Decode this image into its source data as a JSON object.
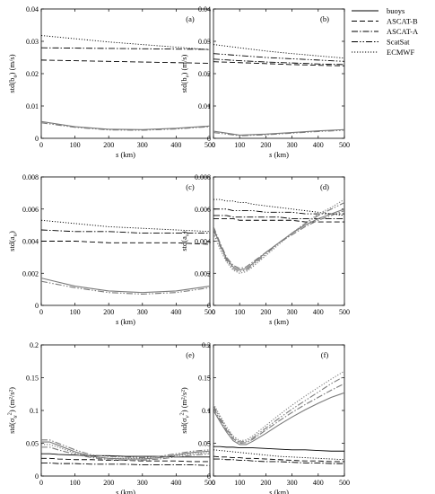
{
  "legend": {
    "items": [
      {
        "name": "buoys",
        "dash": "solid",
        "color": "#000000"
      },
      {
        "name": "ASCAT-B",
        "dash": "dashed",
        "color": "#000000"
      },
      {
        "name": "ASCAT-A",
        "dash": "dashdot",
        "color": "#000000"
      },
      {
        "name": "ScatSat",
        "dash": "dashdotdot",
        "color": "#000000"
      },
      {
        "name": "ECMWF",
        "dash": "dotted",
        "color": "#000000"
      }
    ]
  },
  "chart_data": [
    {
      "type": "line",
      "panel": "(a)",
      "ylabel_main": "std(b",
      "ylabel_sub": "u",
      "ylabel_rest": ")  (m/s)",
      "xlabel_main": "s",
      "xlabel_rest": "(km)",
      "xlim": [
        0,
        500
      ],
      "ylim": [
        0,
        0.04
      ],
      "xticks": [
        0,
        100,
        200,
        300,
        400,
        500
      ],
      "xtick_labels": [
        "0",
        "100",
        "200",
        "300",
        "400",
        "500"
      ],
      "yticks": [
        0,
        0.01,
        0.02,
        0.03,
        0.04
      ],
      "ytick_labels": [
        "0",
        "0.01",
        "0.02",
        "0.03",
        "0.04"
      ],
      "x": [
        0,
        100,
        200,
        300,
        400,
        500
      ],
      "series": [
        {
          "legend": "ASCAT-B",
          "values": [
            0.0242,
            0.024,
            0.0238,
            0.0236,
            0.0234,
            0.0232
          ]
        },
        {
          "legend": "ASCAT-A",
          "values": [
            0.028,
            0.0279,
            0.0278,
            0.0277,
            0.0276,
            0.0275
          ]
        },
        {
          "legend": "ECMWF",
          "values": [
            0.0318,
            0.0308,
            0.0298,
            0.029,
            0.0282,
            0.0274
          ]
        },
        {
          "legend": "buoys",
          "values": [
            0.0052,
            0.0036,
            0.0028,
            0.0027,
            0.0031,
            0.0038
          ]
        },
        {
          "legend": "ScatSat",
          "values": [
            0.0048,
            0.0034,
            0.0026,
            0.0025,
            0.0029,
            0.0036
          ]
        }
      ]
    },
    {
      "type": "line",
      "panel": "(b)",
      "ylabel_main": "std(b",
      "ylabel_sub": "v",
      "ylabel_rest": ")  (m/s)",
      "xlabel_main": "s",
      "xlabel_rest": "(km)",
      "xlim": [
        0,
        500
      ],
      "ylim": [
        0,
        0.04
      ],
      "xticks": [
        0,
        100,
        200,
        300,
        400,
        500
      ],
      "xtick_labels": [
        "0",
        "100",
        "200",
        "300",
        "400",
        "500"
      ],
      "yticks": [
        0,
        0.01,
        0.02,
        0.03,
        0.04
      ],
      "ytick_labels": [
        "0",
        "0.01",
        "0.02",
        "0.03",
        "0.04"
      ],
      "x": [
        0,
        100,
        200,
        300,
        400,
        500
      ],
      "series": [
        {
          "legend": "ECMWF",
          "values": [
            0.029,
            0.028,
            0.027,
            0.0262,
            0.0255,
            0.0248
          ]
        },
        {
          "legend": "ScatSat",
          "values": [
            0.0262,
            0.0256,
            0.025,
            0.0246,
            0.0242,
            0.0238
          ]
        },
        {
          "legend": "ASCAT-A",
          "values": [
            0.0245,
            0.024,
            0.0236,
            0.0233,
            0.023,
            0.0228
          ]
        },
        {
          "legend": "ASCAT-B",
          "values": [
            0.0237,
            0.0234,
            0.0231,
            0.0228,
            0.0226,
            0.0224
          ]
        },
        {
          "legend": "buoys",
          "values": [
            0.0022,
            0.001,
            0.0013,
            0.0018,
            0.0023,
            0.0027
          ]
        },
        {
          "legend": "ScatSat",
          "values": [
            0.0018,
            0.0008,
            0.0011,
            0.0016,
            0.0021,
            0.0025
          ]
        }
      ]
    },
    {
      "type": "line",
      "panel": "(c)",
      "ylabel_main": "std(a",
      "ylabel_sub": "u",
      "ylabel_rest": ")",
      "xlabel_main": "s",
      "xlabel_rest": "(km)",
      "xlim": [
        0,
        500
      ],
      "ylim": [
        0,
        0.008
      ],
      "xticks": [
        0,
        100,
        200,
        300,
        400,
        500
      ],
      "xtick_labels": [
        "0",
        "100",
        "200",
        "300",
        "400",
        "500"
      ],
      "yticks": [
        0,
        0.002,
        0.004,
        0.006,
        0.008
      ],
      "ytick_labels": [
        "0",
        "0.002",
        "0.004",
        "0.006",
        "0.008"
      ],
      "x": [
        0,
        100,
        200,
        300,
        400,
        500
      ],
      "series": [
        {
          "legend": "ECMWF",
          "values": [
            0.0053,
            0.0051,
            0.0049,
            0.0048,
            0.0047,
            0.0046
          ]
        },
        {
          "legend": "ASCAT-A",
          "values": [
            0.0047,
            0.0046,
            0.0046,
            0.0045,
            0.0045,
            0.0045
          ]
        },
        {
          "legend": "ASCAT-B",
          "values": [
            0.004,
            0.004,
            0.0039,
            0.0039,
            0.0039,
            0.0038
          ]
        },
        {
          "legend": "buoys",
          "values": [
            0.0017,
            0.0012,
            0.0009,
            0.0008,
            0.0009,
            0.0012
          ]
        },
        {
          "legend": "ScatSat",
          "values": [
            0.0015,
            0.0011,
            0.0008,
            0.0007,
            0.0008,
            0.0011
          ]
        }
      ]
    },
    {
      "type": "line",
      "panel": "(d)",
      "ylabel_main": "std(a",
      "ylabel_sub": "v",
      "ylabel_rest": ")",
      "xlabel_main": "s",
      "xlabel_rest": "(km)",
      "xlim": [
        0,
        500
      ],
      "ylim": [
        0,
        0.008
      ],
      "xticks": [
        0,
        100,
        200,
        300,
        400,
        500
      ],
      "xtick_labels": [
        "0",
        "100",
        "200",
        "300",
        "400",
        "500"
      ],
      "yticks": [
        0,
        0.002,
        0.004,
        0.006,
        0.008
      ],
      "ytick_labels": [
        "0",
        "0.002",
        "0.004",
        "0.006",
        "0.008"
      ],
      "x": [
        0,
        25,
        50,
        75,
        100,
        125,
        150,
        200,
        250,
        300,
        350,
        400,
        450,
        500
      ],
      "series": [
        {
          "legend": "ECMWF",
          "values": [
            0.0066,
            0.0066,
            0.0065,
            0.0065,
            0.0064,
            0.0064,
            0.0063,
            0.0062,
            0.0061,
            0.006,
            0.0059,
            0.0058,
            0.0057,
            0.0056
          ]
        },
        {
          "legend": "ScatSat",
          "values": [
            0.006,
            0.006,
            0.006,
            0.0059,
            0.0059,
            0.0059,
            0.0059,
            0.0058,
            0.0058,
            0.0058,
            0.0057,
            0.0057,
            0.0057,
            0.0057
          ]
        },
        {
          "legend": "ASCAT-A",
          "values": [
            0.0056,
            0.0056,
            0.0056,
            0.0055,
            0.0055,
            0.0055,
            0.0055,
            0.0055,
            0.0055,
            0.0054,
            0.0054,
            0.0054,
            0.0054,
            0.0054
          ]
        },
        {
          "legend": "ASCAT-B",
          "values": [
            0.0054,
            0.0054,
            0.0054,
            0.0054,
            0.0053,
            0.0053,
            0.0053,
            0.0053,
            0.0053,
            0.0053,
            0.0052,
            0.0052,
            0.0052,
            0.0052
          ]
        },
        {
          "legend": "buoys",
          "values": [
            0.0048,
            0.0038,
            0.0029,
            0.0024,
            0.0022,
            0.0023,
            0.0026,
            0.0033,
            0.0039,
            0.0045,
            0.005,
            0.0054,
            0.0057,
            0.006
          ]
        },
        {
          "legend": "ScatSat",
          "values": [
            0.0047,
            0.0037,
            0.0028,
            0.0023,
            0.0021,
            0.0022,
            0.0025,
            0.0032,
            0.0039,
            0.0045,
            0.0051,
            0.0056,
            0.006,
            0.0064
          ]
        },
        {
          "legend": "ECMWF",
          "values": [
            0.0045,
            0.0035,
            0.0027,
            0.0022,
            0.002,
            0.0021,
            0.0024,
            0.0031,
            0.0038,
            0.0045,
            0.0051,
            0.0057,
            0.0061,
            0.0066
          ]
        },
        {
          "legend": "ASCAT-A",
          "values": [
            0.0049,
            0.0039,
            0.003,
            0.0025,
            0.0023,
            0.0024,
            0.0027,
            0.0033,
            0.0039,
            0.0044,
            0.0049,
            0.0053,
            0.0056,
            0.0059
          ]
        }
      ]
    },
    {
      "type": "line",
      "panel": "(e)",
      "ylabel_main": "std(σ",
      "ylabel_sub": "u",
      "ylabel_sup": "2",
      "ylabel_rest": ")  (m²/s²)",
      "xlabel_main": "s",
      "xlabel_rest": "(km)",
      "xlim": [
        0,
        500
      ],
      "ylim": [
        0,
        0.2
      ],
      "xticks": [
        0,
        100,
        200,
        300,
        400,
        500
      ],
      "xtick_labels": [
        "0",
        "100",
        "200",
        "300",
        "400",
        "500"
      ],
      "yticks": [
        0,
        0.05,
        0.1,
        0.15,
        0.2
      ],
      "ytick_labels": [
        "0",
        "0.05",
        "0.1",
        "0.15",
        "0.2"
      ],
      "x": [
        0,
        25,
        50,
        100,
        150,
        200,
        250,
        300,
        350,
        400,
        450,
        500
      ],
      "series": [
        {
          "legend": "buoys",
          "values": [
            0.034,
            0.034,
            0.033,
            0.032,
            0.031,
            0.031,
            0.03,
            0.03,
            0.03,
            0.029,
            0.029,
            0.029
          ]
        },
        {
          "legend": "ASCAT-B",
          "values": [
            0.027,
            0.027,
            0.026,
            0.025,
            0.025,
            0.024,
            0.024,
            0.023,
            0.023,
            0.023,
            0.022,
            0.022
          ]
        },
        {
          "legend": "ASCAT-A",
          "values": [
            0.02,
            0.02,
            0.019,
            0.019,
            0.018,
            0.018,
            0.018,
            0.017,
            0.017,
            0.017,
            0.017,
            0.016
          ]
        },
        {
          "legend": "ScatSat",
          "values": [
            0.055,
            0.055,
            0.05,
            0.04,
            0.032,
            0.03,
            0.029,
            0.028,
            0.03,
            0.034,
            0.038,
            0.04
          ]
        },
        {
          "legend": "buoys",
          "values": [
            0.052,
            0.052,
            0.047,
            0.037,
            0.03,
            0.027,
            0.026,
            0.026,
            0.028,
            0.032,
            0.036,
            0.038
          ]
        },
        {
          "legend": "ECMWF",
          "values": [
            0.048,
            0.048,
            0.044,
            0.035,
            0.029,
            0.027,
            0.027,
            0.027,
            0.028,
            0.031,
            0.034,
            0.036
          ]
        },
        {
          "legend": "ASCAT-A",
          "values": [
            0.044,
            0.044,
            0.04,
            0.033,
            0.028,
            0.025,
            0.024,
            0.024,
            0.026,
            0.029,
            0.032,
            0.034
          ]
        }
      ]
    },
    {
      "type": "line",
      "panel": "(f)",
      "ylabel_main": "std(σ",
      "ylabel_sub": "v",
      "ylabel_sup": "2",
      "ylabel_rest": ")  (m²/s²)",
      "xlabel_main": "s",
      "xlabel_rest": "(km)",
      "xlim": [
        0,
        500
      ],
      "ylim": [
        0,
        0.2
      ],
      "xticks": [
        0,
        100,
        200,
        300,
        400,
        500
      ],
      "xtick_labels": [
        "0",
        "100",
        "200",
        "300",
        "400",
        "500"
      ],
      "yticks": [
        0,
        0.05,
        0.1,
        0.15,
        0.2
      ],
      "ytick_labels": [
        "0",
        "0.05",
        "0.1",
        "0.15",
        "0.2"
      ],
      "x": [
        0,
        25,
        50,
        75,
        100,
        125,
        150,
        200,
        250,
        300,
        350,
        400,
        450,
        500
      ],
      "series": [
        {
          "legend": "ECMWF",
          "values": [
            0.11,
            0.092,
            0.075,
            0.061,
            0.054,
            0.055,
            0.061,
            0.077,
            0.093,
            0.108,
            0.122,
            0.135,
            0.148,
            0.16
          ]
        },
        {
          "legend": "ScatSat",
          "values": [
            0.107,
            0.089,
            0.072,
            0.059,
            0.052,
            0.053,
            0.058,
            0.073,
            0.088,
            0.102,
            0.115,
            0.128,
            0.141,
            0.152
          ]
        },
        {
          "legend": "ASCAT-A",
          "values": [
            0.104,
            0.086,
            0.07,
            0.057,
            0.05,
            0.051,
            0.056,
            0.07,
            0.084,
            0.097,
            0.109,
            0.12,
            0.131,
            0.141
          ]
        },
        {
          "legend": "buoys",
          "values": [
            0.1,
            0.083,
            0.067,
            0.054,
            0.048,
            0.048,
            0.053,
            0.065,
            0.078,
            0.09,
            0.101,
            0.111,
            0.12,
            0.127
          ]
        },
        {
          "legend": "buoys",
          "values": [
            0.045,
            0.045,
            0.044,
            0.044,
            0.043,
            0.043,
            0.043,
            0.042,
            0.041,
            0.04,
            0.04,
            0.039,
            0.038,
            0.038
          ]
        },
        {
          "legend": "ASCAT-B",
          "values": [
            0.03,
            0.029,
            0.029,
            0.028,
            0.028,
            0.027,
            0.027,
            0.026,
            0.025,
            0.024,
            0.023,
            0.023,
            0.022,
            0.022
          ]
        },
        {
          "legend": "ASCAT-A",
          "values": [
            0.026,
            0.026,
            0.025,
            0.025,
            0.024,
            0.024,
            0.023,
            0.022,
            0.022,
            0.021,
            0.02,
            0.02,
            0.019,
            0.019
          ]
        },
        {
          "legend": "ECMWF",
          "values": [
            0.04,
            0.039,
            0.038,
            0.037,
            0.036,
            0.035,
            0.034,
            0.032,
            0.03,
            0.029,
            0.028,
            0.027,
            0.026,
            0.025
          ]
        }
      ]
    }
  ]
}
